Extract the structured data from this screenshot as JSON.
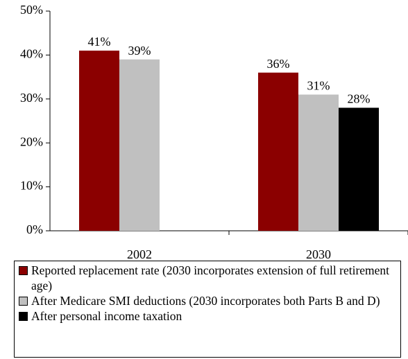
{
  "chart_data": {
    "type": "bar",
    "categories": [
      "2002",
      "2030"
    ],
    "series": [
      {
        "name": "Reported replacement rate (2030 incorporates extension of full retirement age)",
        "color": "#8b0000",
        "values": [
          41,
          36
        ],
        "value_labels": [
          "41%",
          "36%"
        ]
      },
      {
        "name": "After Medicare SMI deductions (2030 incorporates both Parts B and D)",
        "color": "#c0c0c0",
        "values": [
          39,
          31
        ],
        "value_labels": [
          "39%",
          "31%"
        ]
      },
      {
        "name": "After personal income taxation",
        "color": "#000000",
        "values": [
          null,
          28
        ],
        "value_labels": [
          null,
          "28%"
        ]
      }
    ],
    "ylim": [
      0,
      50
    ],
    "yticks": [
      {
        "value": 0,
        "label": "0%"
      },
      {
        "value": 10,
        "label": "10%"
      },
      {
        "value": 20,
        "label": "20%"
      },
      {
        "value": 30,
        "label": "30%"
      },
      {
        "value": 40,
        "label": "40%"
      },
      {
        "value": 50,
        "label": "50%"
      }
    ],
    "grid": false
  }
}
